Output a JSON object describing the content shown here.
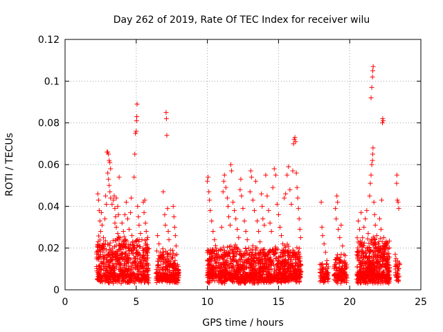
{
  "chart_data": {
    "type": "scatter",
    "title": "Day 262 of 2019, Rate Of TEC Index for receiver wilu",
    "xlabel": "GPS time / hours",
    "ylabel": "ROTI / TECUs",
    "xlim": [
      0,
      25
    ],
    "ylim": [
      0,
      0.12
    ],
    "xticks": [
      0,
      5,
      10,
      15,
      20,
      25
    ],
    "yticks": [
      0,
      0.02,
      0.04,
      0.06,
      0.08,
      0.1,
      0.12
    ],
    "xtick_labels": [
      "0",
      "5",
      "10",
      "15",
      "20",
      "25"
    ],
    "ytick_labels": [
      "0",
      "0.02",
      "0.04",
      "0.06",
      "0.08",
      "0.1",
      "0.12"
    ],
    "grid": true,
    "marker": "+",
    "marker_color": "#ff0000",
    "series": [
      {
        "name": "ROTI",
        "points": [
          [
            2.3,
            0.046
          ],
          [
            2.35,
            0.043
          ],
          [
            2.4,
            0.038
          ],
          [
            2.45,
            0.033
          ],
          [
            2.5,
            0.028
          ],
          [
            2.55,
            0.037
          ],
          [
            2.6,
            0.031
          ],
          [
            2.7,
            0.025
          ],
          [
            2.8,
            0.034
          ],
          [
            2.85,
            0.045
          ],
          [
            2.9,
            0.041
          ],
          [
            2.95,
            0.066
          ],
          [
            3.0,
            0.066
          ],
          [
            3.05,
            0.065
          ],
          [
            3.1,
            0.062
          ],
          [
            3.15,
            0.061
          ],
          [
            3.2,
            0.058
          ],
          [
            3.0,
            0.056
          ],
          [
            3.05,
            0.053
          ],
          [
            3.1,
            0.05
          ],
          [
            3.15,
            0.047
          ],
          [
            3.2,
            0.044
          ],
          [
            3.3,
            0.041
          ],
          [
            3.4,
            0.043
          ],
          [
            3.45,
            0.045
          ],
          [
            3.5,
            0.039
          ],
          [
            3.55,
            0.035
          ],
          [
            3.6,
            0.044
          ],
          [
            3.7,
            0.04
          ],
          [
            3.75,
            0.036
          ],
          [
            3.5,
            0.032
          ],
          [
            3.6,
            0.03
          ],
          [
            3.7,
            0.027
          ],
          [
            3.8,
            0.054
          ],
          [
            3.85,
            0.025
          ],
          [
            3.9,
            0.021
          ],
          [
            4.0,
            0.032
          ],
          [
            4.1,
            0.028
          ],
          [
            4.2,
            0.036
          ],
          [
            4.25,
            0.024
          ],
          [
            4.3,
            0.042
          ],
          [
            4.4,
            0.034
          ],
          [
            4.5,
            0.029
          ],
          [
            4.6,
            0.037
          ],
          [
            4.65,
            0.044
          ],
          [
            4.7,
            0.026
          ],
          [
            4.8,
            0.021
          ],
          [
            4.85,
            0.054
          ],
          [
            4.9,
            0.065
          ],
          [
            4.95,
            0.075
          ],
          [
            5.0,
            0.076
          ],
          [
            5.02,
            0.081
          ],
          [
            5.04,
            0.083
          ],
          [
            5.06,
            0.089
          ],
          [
            5.1,
            0.04
          ],
          [
            5.15,
            0.035
          ],
          [
            5.2,
            0.031
          ],
          [
            5.3,
            0.027
          ],
          [
            5.4,
            0.024
          ],
          [
            5.5,
            0.042
          ],
          [
            5.55,
            0.037
          ],
          [
            5.6,
            0.043
          ],
          [
            5.65,
            0.032
          ],
          [
            5.7,
            0.028
          ],
          [
            5.75,
            0.024
          ],
          [
            5.8,
            0.02
          ],
          [
            6.5,
            0.026
          ],
          [
            6.6,
            0.022
          ],
          [
            6.7,
            0.018
          ],
          [
            6.8,
            0.015
          ],
          [
            6.9,
            0.047
          ],
          [
            7.0,
            0.036
          ],
          [
            7.05,
            0.031
          ],
          [
            7.1,
            0.085
          ],
          [
            7.12,
            0.082
          ],
          [
            7.15,
            0.074
          ],
          [
            7.2,
            0.039
          ],
          [
            7.25,
            0.028
          ],
          [
            7.3,
            0.024
          ],
          [
            7.4,
            0.019
          ],
          [
            7.5,
            0.015
          ],
          [
            7.6,
            0.04
          ],
          [
            7.65,
            0.035
          ],
          [
            7.7,
            0.03
          ],
          [
            7.75,
            0.026
          ],
          [
            7.8,
            0.021
          ],
          [
            7.85,
            0.017
          ],
          [
            7.9,
            0.012
          ],
          [
            10.0,
            0.052
          ],
          [
            10.05,
            0.054
          ],
          [
            10.1,
            0.047
          ],
          [
            10.15,
            0.043
          ],
          [
            10.2,
            0.038
          ],
          [
            10.3,
            0.033
          ],
          [
            10.4,
            0.028
          ],
          [
            10.5,
            0.024
          ],
          [
            10.6,
            0.02
          ],
          [
            10.7,
            0.017
          ],
          [
            10.8,
            0.013
          ],
          [
            10.9,
            0.011
          ],
          [
            11.0,
            0.03
          ],
          [
            11.1,
            0.047
          ],
          [
            11.15,
            0.052
          ],
          [
            11.2,
            0.055
          ],
          [
            11.3,
            0.049
          ],
          [
            11.4,
            0.044
          ],
          [
            11.45,
            0.04
          ],
          [
            11.5,
            0.035
          ],
          [
            11.6,
            0.031
          ],
          [
            11.65,
            0.06
          ],
          [
            11.7,
            0.057
          ],
          [
            11.8,
            0.042
          ],
          [
            11.9,
            0.038
          ],
          [
            12.0,
            0.034
          ],
          [
            12.1,
            0.029
          ],
          [
            12.2,
            0.025
          ],
          [
            12.3,
            0.048
          ],
          [
            12.35,
            0.053
          ],
          [
            12.4,
            0.045
          ],
          [
            12.5,
            0.039
          ],
          [
            12.6,
            0.033
          ],
          [
            12.7,
            0.028
          ],
          [
            12.8,
            0.024
          ],
          [
            12.9,
            0.02
          ],
          [
            13.0,
            0.047
          ],
          [
            13.05,
            0.057
          ],
          [
            13.1,
            0.054
          ],
          [
            13.2,
            0.043
          ],
          [
            13.3,
            0.038
          ],
          [
            13.4,
            0.052
          ],
          [
            13.5,
            0.033
          ],
          [
            13.6,
            0.028
          ],
          [
            13.7,
            0.023
          ],
          [
            13.8,
            0.046
          ],
          [
            13.85,
            0.04
          ],
          [
            13.9,
            0.034
          ],
          [
            14.0,
            0.031
          ],
          [
            14.1,
            0.055
          ],
          [
            14.2,
            0.045
          ],
          [
            14.3,
            0.038
          ],
          [
            14.4,
            0.032
          ],
          [
            14.5,
            0.028
          ],
          [
            14.6,
            0.049
          ],
          [
            14.7,
            0.058
          ],
          [
            14.8,
            0.055
          ],
          [
            14.9,
            0.041
          ],
          [
            15.0,
            0.036
          ],
          [
            15.1,
            0.03
          ],
          [
            15.2,
            0.026
          ],
          [
            15.3,
            0.022
          ],
          [
            15.4,
            0.044
          ],
          [
            15.5,
            0.046
          ],
          [
            15.6,
            0.055
          ],
          [
            15.7,
            0.059
          ],
          [
            15.8,
            0.048
          ],
          [
            15.9,
            0.041
          ],
          [
            16.0,
            0.057
          ],
          [
            16.05,
            0.07
          ],
          [
            16.1,
            0.072
          ],
          [
            16.15,
            0.073
          ],
          [
            16.2,
            0.071
          ],
          [
            16.25,
            0.056
          ],
          [
            16.3,
            0.049
          ],
          [
            16.35,
            0.044
          ],
          [
            16.4,
            0.039
          ],
          [
            16.45,
            0.034
          ],
          [
            16.5,
            0.029
          ],
          [
            16.55,
            0.025
          ],
          [
            18.0,
            0.042
          ],
          [
            18.05,
            0.03
          ],
          [
            18.1,
            0.026
          ],
          [
            18.2,
            0.022
          ],
          [
            18.3,
            0.018
          ],
          [
            18.4,
            0.014
          ],
          [
            18.5,
            0.011
          ],
          [
            19.0,
            0.039
          ],
          [
            19.05,
            0.034
          ],
          [
            19.1,
            0.045
          ],
          [
            19.15,
            0.042
          ],
          [
            19.2,
            0.029
          ],
          [
            19.3,
            0.025
          ],
          [
            19.4,
            0.031
          ],
          [
            19.5,
            0.021
          ],
          [
            19.6,
            0.017
          ],
          [
            19.7,
            0.013
          ],
          [
            20.6,
            0.033
          ],
          [
            20.7,
            0.029
          ],
          [
            20.8,
            0.037
          ],
          [
            20.9,
            0.025
          ],
          [
            21.0,
            0.03
          ],
          [
            21.1,
            0.034
          ],
          [
            21.2,
            0.038
          ],
          [
            21.3,
            0.027
          ],
          [
            21.4,
            0.045
          ],
          [
            21.45,
            0.051
          ],
          [
            21.5,
            0.055
          ],
          [
            21.55,
            0.06
          ],
          [
            21.6,
            0.062
          ],
          [
            21.62,
            0.065
          ],
          [
            21.64,
            0.068
          ],
          [
            21.5,
            0.092
          ],
          [
            21.55,
            0.097
          ],
          [
            21.6,
            0.102
          ],
          [
            21.62,
            0.105
          ],
          [
            21.65,
            0.107
          ],
          [
            21.7,
            0.042
          ],
          [
            21.75,
            0.036
          ],
          [
            21.8,
            0.031
          ],
          [
            21.9,
            0.026
          ],
          [
            22.0,
            0.022
          ],
          [
            22.1,
            0.034
          ],
          [
            22.2,
            0.029
          ],
          [
            22.25,
            0.043
          ],
          [
            22.3,
            0.08
          ],
          [
            22.32,
            0.082
          ],
          [
            22.35,
            0.081
          ],
          [
            22.4,
            0.025
          ],
          [
            22.5,
            0.021
          ],
          [
            22.6,
            0.017
          ],
          [
            22.7,
            0.013
          ],
          [
            23.2,
            0.017
          ],
          [
            23.25,
            0.015
          ],
          [
            23.3,
            0.051
          ],
          [
            23.32,
            0.055
          ],
          [
            23.35,
            0.043
          ],
          [
            23.4,
            0.042
          ],
          [
            23.45,
            0.039
          ],
          [
            23.5,
            0.012
          ]
        ],
        "dense_clusters": [
          {
            "x_range": [
              2.2,
              5.9
            ],
            "y_range": [
              0.003,
              0.022
            ],
            "count": 650
          },
          {
            "x_range": [
              6.4,
              7.8
            ],
            "y_range": [
              0.003,
              0.016
            ],
            "count": 200
          },
          {
            "x_range": [
              7.6,
              8.0
            ],
            "y_range": [
              0.003,
              0.01
            ],
            "count": 60
          },
          {
            "x_range": [
              10.0,
              16.6
            ],
            "y_range": [
              0.003,
              0.018
            ],
            "count": 1200
          },
          {
            "x_range": [
              17.9,
              18.5
            ],
            "y_range": [
              0.003,
              0.01
            ],
            "count": 70
          },
          {
            "x_range": [
              18.9,
              19.8
            ],
            "y_range": [
              0.003,
              0.014
            ],
            "count": 120
          },
          {
            "x_range": [
              20.5,
              22.8
            ],
            "y_range": [
              0.003,
              0.022
            ],
            "count": 600
          },
          {
            "x_range": [
              23.2,
              23.5
            ],
            "y_range": [
              0.004,
              0.012
            ],
            "count": 30
          }
        ]
      }
    ]
  }
}
